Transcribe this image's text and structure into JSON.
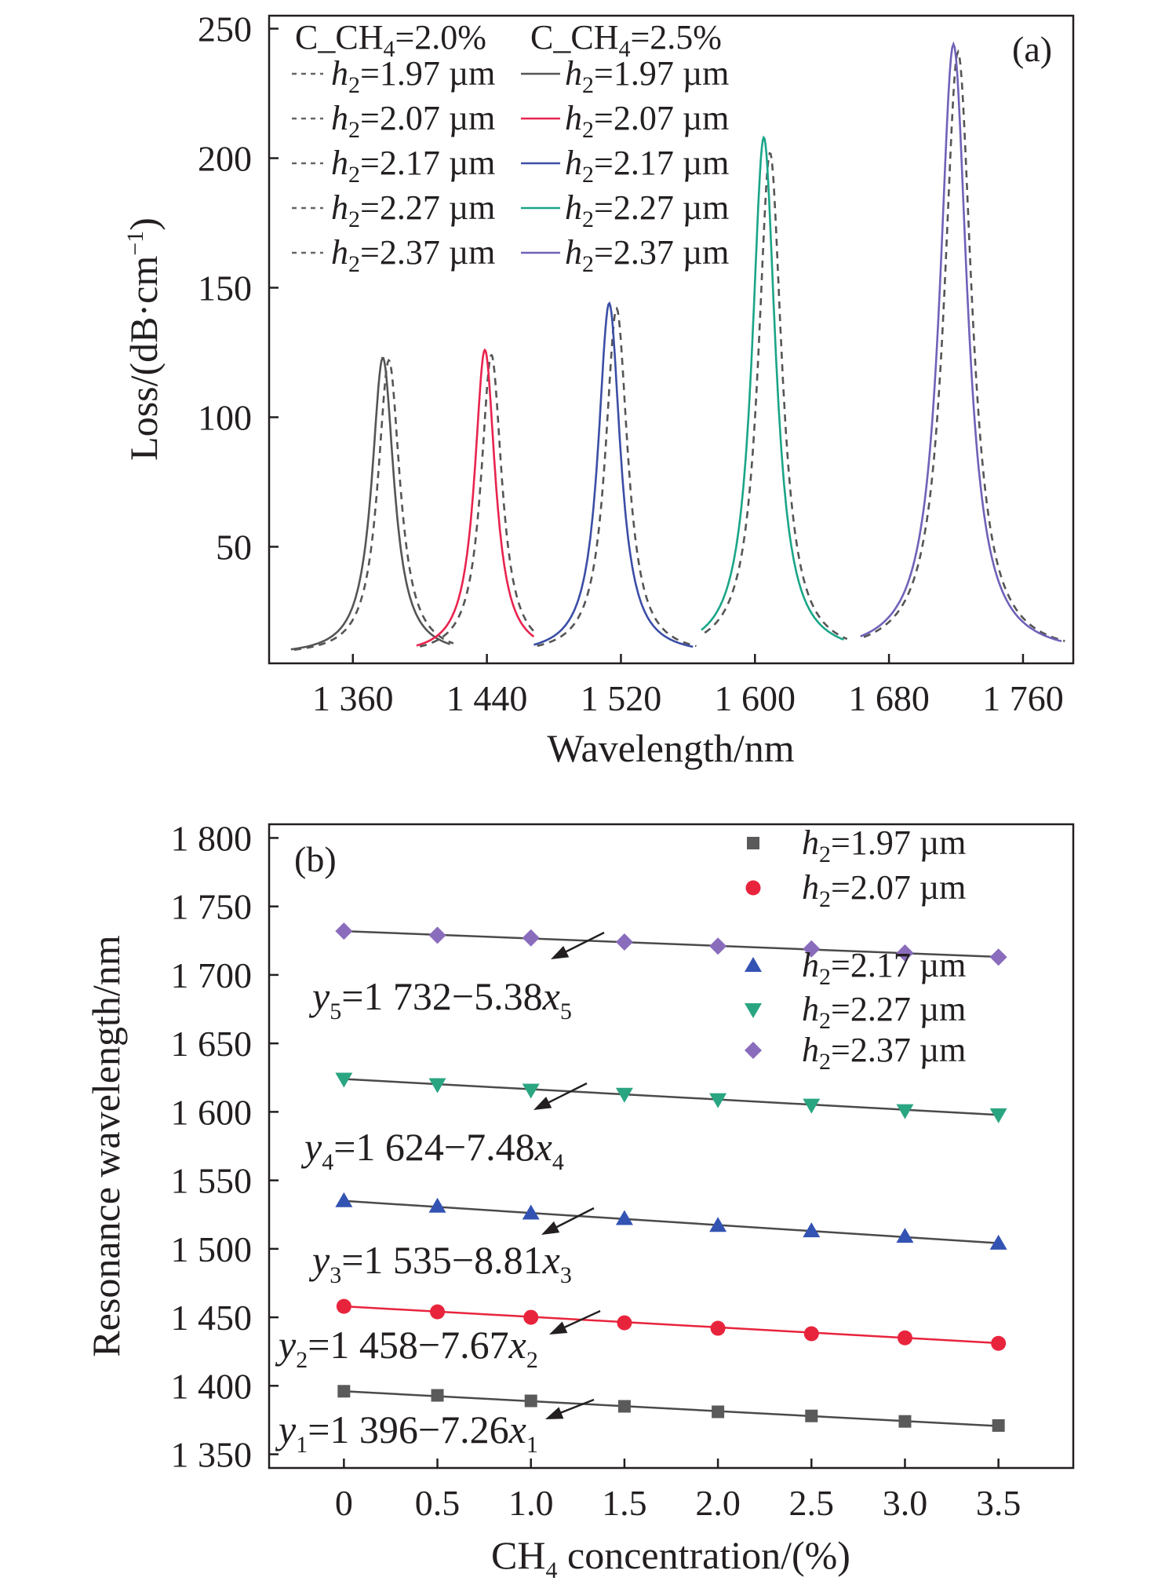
{
  "chart_data": [
    {
      "panel_label": "(a)",
      "type": "line",
      "xlabel": "Wavelength/nm",
      "ylabel": "Loss/(dB·cm⁻¹)",
      "ylabel_parts": {
        "main": "Loss/(dB·cm",
        "sup": "−1",
        "close": ")"
      },
      "xlim": [
        1310,
        1790
      ],
      "ylim": [
        5,
        255
      ],
      "x_ticks": [
        1360,
        1440,
        1520,
        1600,
        1680,
        1760
      ],
      "x_tick_labels": [
        "1 360",
        "1 440",
        "1 520",
        "1 600",
        "1 680",
        "1 760"
      ],
      "y_ticks": [
        50,
        100,
        150,
        200,
        250
      ],
      "y_tick_labels": [
        "50",
        "100",
        "150",
        "200",
        "250"
      ],
      "legend_position": "top-left",
      "legend_headers": [
        {
          "pre": "C_CH",
          "sub": "4",
          "post": "=2.0%"
        },
        {
          "pre": "C_CH",
          "sub": "4",
          "post": "=2.5%"
        }
      ],
      "legend_entries": [
        {
          "var": "h",
          "sub": "2",
          "value": "=1.97 µm"
        },
        {
          "var": "h",
          "sub": "2",
          "value": "=2.07 µm"
        },
        {
          "var": "h",
          "sub": "2",
          "value": "=2.17 µm"
        },
        {
          "var": "h",
          "sub": "2",
          "value": "=2.27 µm"
        },
        {
          "var": "h",
          "sub": "2",
          "value": "=2.37 µm"
        }
      ],
      "series": [
        {
          "h2": "1.97 µm",
          "color": "#555555",
          "peak_wavelength_c20": 1381.5,
          "peak_wavelength_c25": 1377.9,
          "peak_loss_c20": 122,
          "peak_loss_c25": 123,
          "width": 16,
          "x_range": [
            1325,
            1420
          ]
        },
        {
          "h2": "2.07 µm",
          "color": "#e8244e",
          "peak_wavelength_c20": 1442.7,
          "peak_wavelength_c25": 1438.8,
          "peak_loss_c20": 124,
          "peak_loss_c25": 126,
          "width": 15,
          "x_range": [
            1400,
            1470
          ]
        },
        {
          "h2": "2.17 µm",
          "color": "#3b4ea6",
          "peak_wavelength_c20": 1517.4,
          "peak_wavelength_c25": 1513.0,
          "peak_loss_c20": 142,
          "peak_loss_c25": 144,
          "width": 16,
          "x_range": [
            1470,
            1565
          ]
        },
        {
          "h2": "2.27 µm",
          "color": "#1aa588",
          "peak_wavelength_c20": 1609.0,
          "peak_wavelength_c25": 1605.3,
          "peak_loss_c20": 202,
          "peak_loss_c25": 208,
          "width": 17,
          "x_range": [
            1570,
            1655
          ]
        },
        {
          "h2": "2.37 µm",
          "color": "#6e62b8",
          "peak_wavelength_c20": 1721.2,
          "peak_wavelength_c25": 1718.5,
          "peak_loss_c20": 241,
          "peak_loss_c25": 244,
          "width": 20,
          "x_range": [
            1665,
            1785
          ]
        }
      ]
    },
    {
      "panel_label": "(b)",
      "type": "scatter",
      "xlabel_parts": {
        "pre": "CH",
        "sub": "4",
        "post": " concentration/(%)"
      },
      "xlabel": "CH4 concentration/(%)",
      "ylabel": "Resonance wavelength/nm",
      "xlim": [
        -0.4,
        3.9
      ],
      "ylim": [
        1340,
        1810
      ],
      "x_ticks": [
        0,
        0.5,
        1.0,
        1.5,
        2.0,
        2.5,
        3.0,
        3.5
      ],
      "x_tick_labels": [
        "0",
        "0.5",
        "1.0",
        "1.5",
        "2.0",
        "2.5",
        "3.0",
        "3.5"
      ],
      "y_ticks": [
        1350,
        1400,
        1450,
        1500,
        1550,
        1600,
        1650,
        1700,
        1750,
        1800
      ],
      "y_tick_labels": [
        "1 350",
        "1 400",
        "1 450",
        "1 500",
        "1 550",
        "1 600",
        "1 650",
        "1 700",
        "1 750",
        "1 800"
      ],
      "legend_position": "top-right",
      "x": [
        0,
        0.5,
        1.0,
        1.5,
        2.0,
        2.5,
        3.0,
        3.5
      ],
      "series": [
        {
          "name_var": "h",
          "name_sub": "2",
          "name_value": "=1.97 µm",
          "marker": "square",
          "color": "#5a5a5a",
          "values": [
            1396,
            1393,
            1389,
            1385,
            1381,
            1378,
            1374,
            1371
          ],
          "fit": {
            "intercept": 1396,
            "slope": -7.26
          },
          "equation": {
            "y": "y",
            "idx": "1",
            "expr": "=1 396−7.26",
            "x": "x"
          }
        },
        {
          "name_var": "h",
          "name_sub": "2",
          "name_value": "=2.07 µm",
          "marker": "circle",
          "color": "#e8243c",
          "values": [
            1458,
            1454,
            1450,
            1446,
            1442,
            1438,
            1435,
            1431
          ],
          "fit": {
            "intercept": 1458,
            "slope": -7.67
          },
          "equation": {
            "y": "y",
            "idx": "2",
            "expr": "=1 458−7.67",
            "x": "x"
          }
        },
        {
          "name_var": "h",
          "name_sub": "2",
          "name_value": "=2.17 µm",
          "marker": "triangle-up",
          "color": "#3353b3",
          "values": [
            1535,
            1531,
            1526,
            1522,
            1517,
            1513,
            1509,
            1504
          ],
          "fit": {
            "intercept": 1535,
            "slope": -8.81
          },
          "equation": {
            "y": "y",
            "idx": "3",
            "expr": "=1 535−8.81",
            "x": "x"
          }
        },
        {
          "name_var": "h",
          "name_sub": "2",
          "name_value": "=2.27 µm",
          "marker": "triangle-down",
          "color": "#2aa582",
          "values": [
            1624,
            1620,
            1616,
            1613,
            1609,
            1605,
            1601,
            1598
          ],
          "fit": {
            "intercept": 1624,
            "slope": -7.48
          },
          "equation": {
            "y": "y",
            "idx": "4",
            "expr": "=1 624−7.48",
            "x": "x"
          }
        },
        {
          "name_var": "h",
          "name_sub": "2",
          "name_value": "=2.37 µm",
          "marker": "diamond",
          "color": "#8a6cbc",
          "values": [
            1732,
            1729,
            1727,
            1724,
            1721,
            1719,
            1716,
            1713
          ],
          "fit": {
            "intercept": 1732,
            "slope": -5.38
          },
          "equation": {
            "y": "y",
            "idx": "5",
            "expr": "=1 732−5.38",
            "x": "x"
          }
        }
      ]
    }
  ]
}
